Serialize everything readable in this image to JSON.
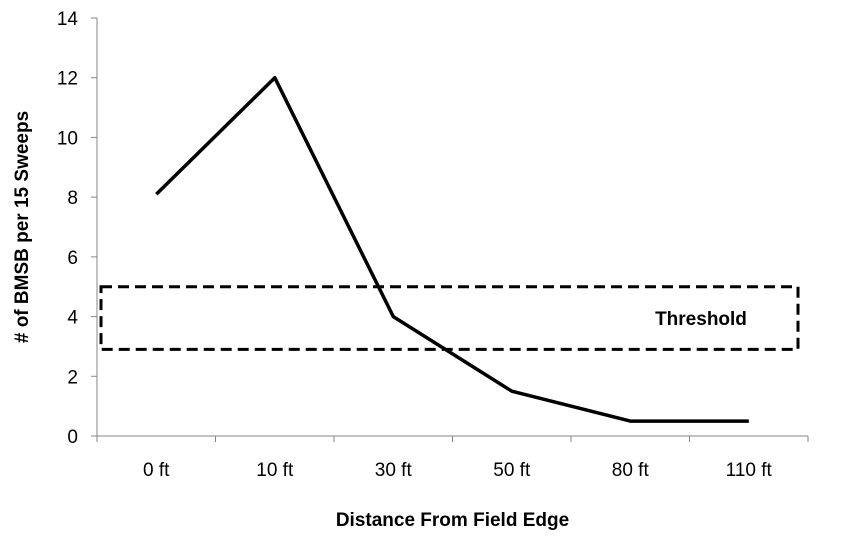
{
  "chart_data": {
    "type": "line",
    "title": "",
    "xlabel": "Distance From Field Edge",
    "ylabel": "# of BMSB per 15 Sweeps",
    "categories": [
      "0 ft",
      "10 ft",
      "30 ft",
      "50 ft",
      "80 ft",
      "110 ft"
    ],
    "series": [
      {
        "values": [
          8.1,
          12,
          4,
          1.5,
          0.5,
          0.5
        ],
        "color": "#000000"
      }
    ],
    "ylim": [
      0,
      14
    ],
    "yticks": [
      0,
      2,
      4,
      6,
      8,
      10,
      12,
      14
    ],
    "ytick_labels": [
      "0",
      "2",
      "4",
      "6",
      "8",
      "10",
      "12",
      "14"
    ],
    "grid": false,
    "legend": "none",
    "threshold": {
      "label": "Threshold",
      "lower": 2.9,
      "upper": 5,
      "style": "dashed box"
    }
  }
}
